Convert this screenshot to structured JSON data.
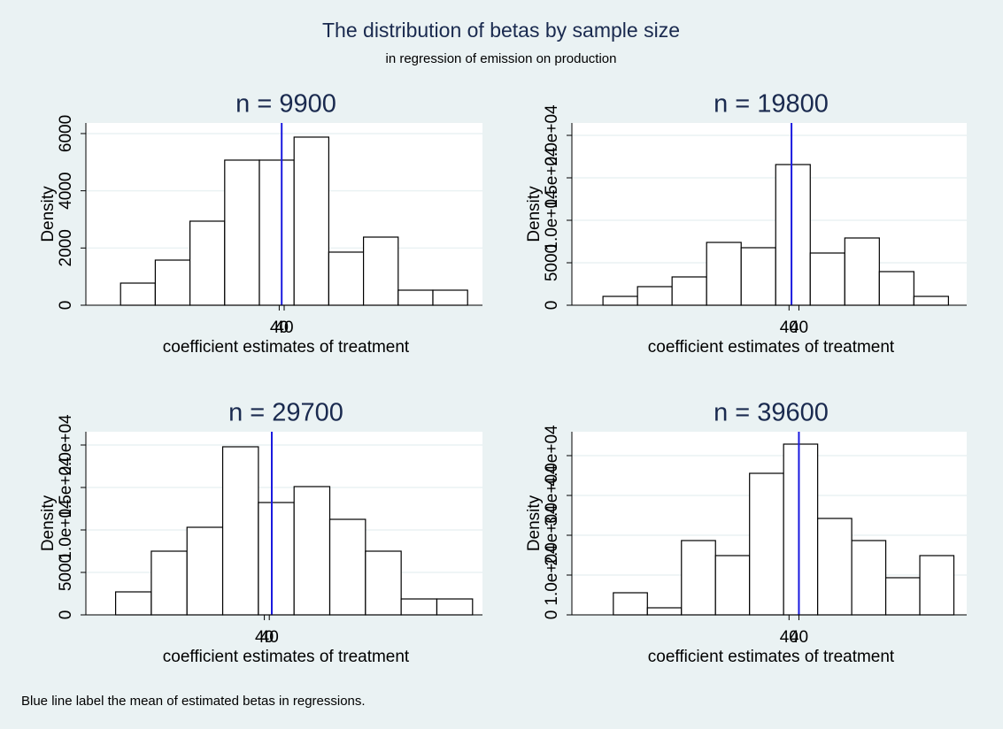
{
  "title": "The distribution of betas by sample size",
  "subtitle": "in regression of emission on production",
  "note": "Blue line label the mean of estimated betas in regressions.",
  "chart_data": [
    {
      "type": "histogram",
      "title": "n = 9900",
      "xlabel": "coefficient estimates of treatment",
      "ylabel": "Density",
      "bins": [
        39.67,
        39.74,
        39.81,
        39.88,
        39.95,
        40.02,
        40.09,
        40.16,
        40.23,
        40.3,
        40.37
      ],
      "values": [
        773,
        1577,
        2938,
        5072,
        5072,
        5876,
        1856,
        2381,
        526,
        526
      ],
      "mean": 39.995,
      "mean_color": "#1a1adf",
      "color": "#ffffff",
      "grid": true,
      "xlim": [
        39.6,
        40.4
      ],
      "xticks": [
        {
          "value": 39.99,
          "label": "40"
        },
        40
      ],
      "ylim": [
        0,
        6370
      ],
      "yticks": [
        0,
        2000,
        4000,
        6000
      ]
    },
    {
      "type": "histogram",
      "title": "n = 19800",
      "xlabel": "coefficient estimates of treatment",
      "ylabel": "Density",
      "bins": [
        39.9603,
        39.9673,
        39.9743,
        39.9813,
        39.9883,
        39.9953,
        40.0023,
        40.0093,
        40.0163,
        40.0233,
        40.0303
      ],
      "values": [
        1042,
        2188,
        3333,
        7396,
        6771,
        16563,
        6146,
        7917,
        3958,
        1042
      ],
      "mean": 39.9985,
      "mean_color": "#1a1adf",
      "color": "#ffffff",
      "grid": true,
      "xlim": [
        39.954,
        40.034
      ],
      "xticks": [
        {
          "value": 39.998,
          "label": "40"
        },
        40
      ],
      "ylim": [
        0,
        21458
      ],
      "yticks": [
        0,
        5000,
        {
          "value": 10000,
          "label": "1.0e+04"
        },
        {
          "value": 15000,
          "label": "1.5e+04"
        },
        {
          "value": 20000,
          "label": "2.0e+04"
        }
      ]
    },
    {
      "type": "histogram",
      "title": "n = 29700",
      "xlabel": "coefficient estimates of treatment",
      "ylabel": "Density",
      "bins": [
        39.66,
        39.732,
        39.804,
        39.876,
        39.948,
        40.02,
        40.092,
        40.164,
        40.236,
        40.308,
        40.38
      ],
      "values": [
        2708,
        7500,
        10313,
        19792,
        13229,
        15104,
        11250,
        7500,
        1875,
        1875
      ],
      "mean": 39.975,
      "mean_color": "#1a1adf",
      "color": "#ffffff",
      "grid": true,
      "xlim": [
        39.6,
        40.4
      ],
      "xticks": [
        {
          "value": 39.96,
          "label": "40"
        },
        {
          "value": 39.97,
          "label": "40"
        }
      ],
      "ylim": [
        0,
        21563
      ],
      "yticks": [
        0,
        5000,
        {
          "value": 10000,
          "label": "1.0e+04"
        },
        {
          "value": 15000,
          "label": "1.5e+04"
        },
        {
          "value": 20000,
          "label": "2.0e+04"
        }
      ]
    },
    {
      "type": "histogram",
      "title": "n = 39600",
      "xlabel": "coefficient estimates of treatment",
      "ylabel": "Density",
      "bins": [
        39.9624,
        39.9693,
        39.9762,
        39.9831,
        39.99,
        39.9969,
        40.0038,
        40.0107,
        40.0176,
        40.0245,
        40.0314
      ],
      "values": [
        5556,
        1778,
        18667,
        14889,
        35556,
        42889,
        24222,
        18667,
        9333,
        14889
      ],
      "mean": 40.0,
      "mean_color": "#1a1adf",
      "color": "#ffffff",
      "grid": true,
      "xlim": [
        39.954,
        40.034
      ],
      "xticks": [
        {
          "value": 39.998,
          "label": "40"
        },
        40
      ],
      "ylim": [
        0,
        46000
      ],
      "yticks": [
        0,
        {
          "value": 10000,
          "label": "1.0e+04"
        },
        {
          "value": 20000,
          "label": "2.0e+04"
        },
        {
          "value": 30000,
          "label": "3.0e+04"
        },
        {
          "value": 40000,
          "label": "4.0e+04"
        }
      ]
    }
  ]
}
